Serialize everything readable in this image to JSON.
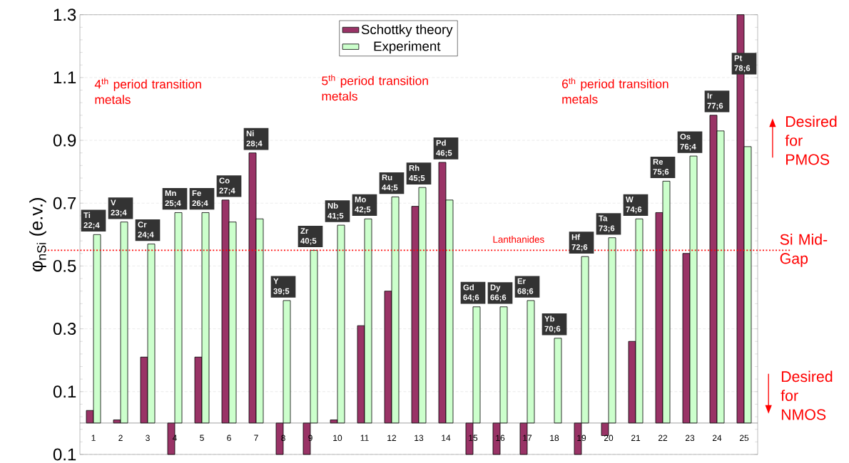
{
  "chart_data": {
    "type": "bar",
    "ylabel": "φ$_{nSi}$ (e.v.)",
    "categories": [
      "1",
      "2",
      "3",
      "4",
      "5",
      "6",
      "7",
      "8",
      "9",
      "10",
      "11",
      "12",
      "13",
      "14",
      "15",
      "16",
      "17",
      "18",
      "19",
      "20",
      "21",
      "22",
      "23",
      "24",
      "25"
    ],
    "series": [
      {
        "name": "Schottky theory",
        "color": "#993366",
        "values": [
          0.04,
          0.01,
          0.21,
          -0.1,
          0.21,
          0.71,
          0.86,
          -0.1,
          -0.1,
          0.01,
          0.31,
          0.42,
          0.69,
          0.83,
          -0.1,
          -0.1,
          -0.1,
          null,
          -0.1,
          -0.04,
          0.26,
          0.67,
          0.54,
          0.98,
          1.3
        ]
      },
      {
        "name": "Experiment",
        "color": "#ccffcc",
        "values": [
          0.6,
          0.64,
          0.57,
          0.67,
          0.67,
          0.64,
          0.65,
          0.39,
          0.55,
          0.63,
          0.65,
          0.72,
          0.75,
          0.71,
          0.37,
          0.37,
          0.39,
          0.27,
          0.53,
          0.59,
          0.65,
          0.77,
          0.85,
          0.93,
          0.88
        ]
      }
    ],
    "ylim": [
      -0.1,
      1.3
    ],
    "yticks": [
      1.3,
      1.1,
      0.9,
      0.7,
      0.5,
      0.3,
      0.1,
      {
        "value": -0.1,
        "label": "0.1"
      }
    ],
    "grid": "y",
    "legend": "top",
    "ref_lines": [
      {
        "axis": "y",
        "value": 0.55,
        "label": "Si Mid-Gap",
        "color": "#ff0000",
        "line_style": "dotted"
      }
    ],
    "annotations": [
      {
        "text": "Ti 22;4",
        "x": "1",
        "y": 0.6
      },
      {
        "text": "V 23;4",
        "x": "2",
        "y": 0.64
      },
      {
        "text": "Cr 24;4",
        "x": "3",
        "y": 0.57
      },
      {
        "text": "Mn 25;4",
        "x": "4",
        "y": 0.67
      },
      {
        "text": "Fe 26;4",
        "x": "5",
        "y": 0.67
      },
      {
        "text": "Co 27;4",
        "x": "6",
        "y": 0.71
      },
      {
        "text": "Ni 28;4",
        "x": "7",
        "y": 0.86
      },
      {
        "text": "Y 39;5",
        "x": "8",
        "y": 0.39
      },
      {
        "text": "Zr 40;5",
        "x": "9",
        "y": 0.55
      },
      {
        "text": "Nb 41;5",
        "x": "10",
        "y": 0.63
      },
      {
        "text": "Mo 42;5",
        "x": "11",
        "y": 0.65
      },
      {
        "text": "Ru 44;5",
        "x": "12",
        "y": 0.72
      },
      {
        "text": "Rh 45;5",
        "x": "13",
        "y": 0.75
      },
      {
        "text": "Pd 46;5",
        "x": "14",
        "y": 0.83
      },
      {
        "text": "Gd 64;6",
        "x": "15",
        "y": 0.37
      },
      {
        "text": "Dy 66;6",
        "x": "16",
        "y": 0.37
      },
      {
        "text": "Er 68;6",
        "x": "17",
        "y": 0.39
      },
      {
        "text": "Yb 70;6",
        "x": "18",
        "y": 0.27
      },
      {
        "text": "Hf 72;6",
        "x": "19",
        "y": 0.53
      },
      {
        "text": "Ta 73;6",
        "x": "20",
        "y": 0.59
      },
      {
        "text": "W 74;6",
        "x": "21",
        "y": 0.65
      },
      {
        "text": "Re 75;6",
        "x": "22",
        "y": 0.77
      },
      {
        "text": "Os 76;4",
        "x": "23",
        "y": 0.85
      },
      {
        "text": "Ir 77;6",
        "x": "24",
        "y": 0.98
      },
      {
        "text": "Pt 78;6",
        "x": "25",
        "y": 1.1
      },
      "4$^{th}$ period transition metals",
      "5$^{th}$ period transition metals",
      "6$^{th}$ period transition metals",
      "Lanthanides",
      "Desired for PMOS",
      "Desired for NMOS"
    ]
  }
}
